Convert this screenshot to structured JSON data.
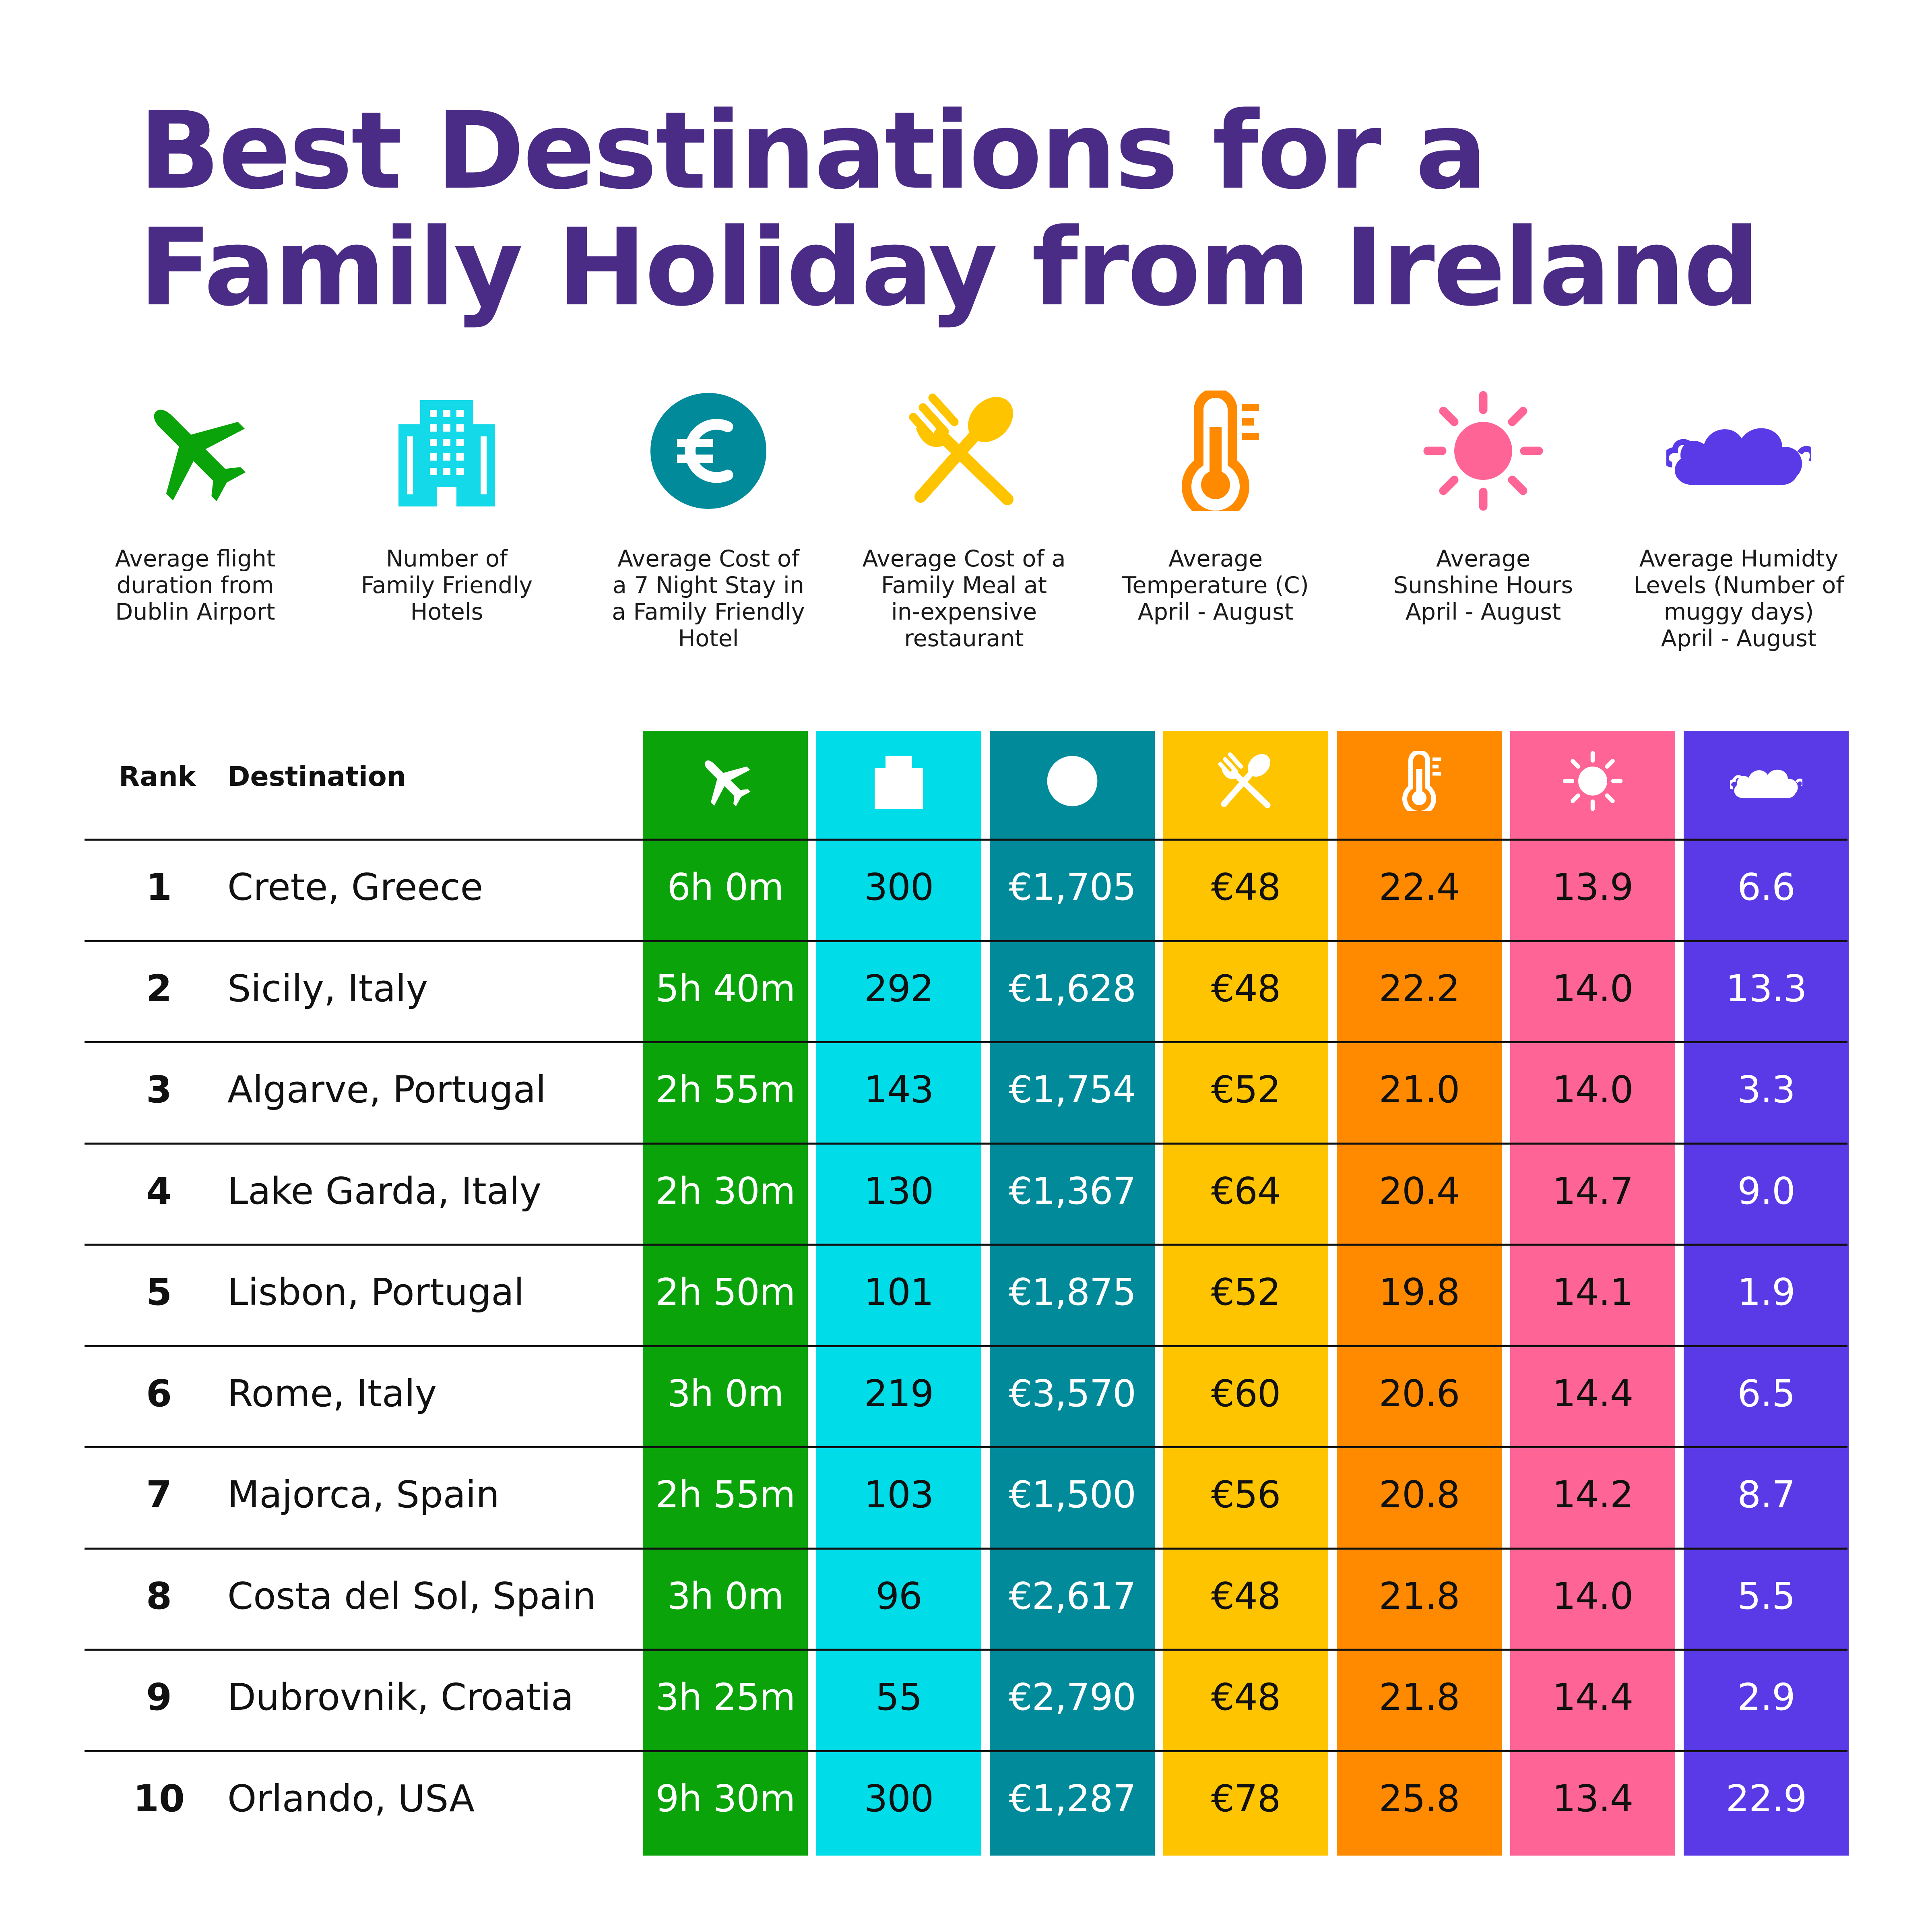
{
  "title": [
    "Best Destinations for a",
    "Family Holiday from Ireland"
  ],
  "legend": [
    {
      "icon": "airplane-icon",
      "color": "#0aa30a",
      "lines": [
        "Average flight",
        "duration from",
        "Dublin Airport"
      ]
    },
    {
      "icon": "hotel-building-icon",
      "color": "#14d9e8",
      "lines": [
        "Number of",
        "Family Friendly",
        "Hotels"
      ]
    },
    {
      "icon": "euro-coin-icon",
      "color": "#008a9a",
      "lines": [
        "Average Cost of",
        "a 7 Night Stay in",
        "a Family Friendly",
        "Hotel"
      ]
    },
    {
      "icon": "fork-spoon-icon",
      "color": "#ffc400",
      "lines": [
        "Average Cost of a",
        "Family Meal at",
        "in-expensive",
        "restaurant"
      ]
    },
    {
      "icon": "thermometer-icon",
      "color": "#ff8a00",
      "lines": [
        "Average",
        "Temperature (C)",
        "April - August"
      ]
    },
    {
      "icon": "sun-icon",
      "color": "#ff6496",
      "lines": [
        "Average",
        "Sunshine Hours",
        "April - August"
      ]
    },
    {
      "icon": "cloud-icon",
      "color": "#5a3ae6",
      "lines": [
        "Average Humidty",
        "Levels (Number of",
        "muggy days)",
        "April - August"
      ]
    }
  ],
  "table_headers": {
    "rank": "Rank",
    "destination": "Destination"
  },
  "colors": {
    "title": "#4a2b86",
    "columns": [
      "#0aa30a",
      "#00dce8",
      "#008a9a",
      "#ffc400",
      "#ff8a00",
      "#ff6496",
      "#5a3ae6"
    ],
    "column_text": [
      "#ffffff",
      "#111111",
      "#ffffff",
      "#111111",
      "#111111",
      "#111111",
      "#ffffff"
    ]
  },
  "chart_data": {
    "type": "table",
    "columns": [
      "Rank",
      "Destination",
      "Average flight duration from Dublin Airport",
      "Number of Family Friendly Hotels",
      "Average Cost of a 7 Night Stay in a Family Friendly Hotel",
      "Average Cost of a Family Meal at in-expensive restaurant",
      "Average Temperature (C) April - August",
      "Average Sunshine Hours April - August",
      "Average Humidty Levels (Number of muggy days) April - August"
    ],
    "rows": [
      {
        "rank": "1",
        "destination": "Crete, Greece",
        "flight": "6h 0m",
        "hotels": "300",
        "stay": "€1,705",
        "meal": "€48",
        "temp": "22.4",
        "sun": "13.9",
        "humid": "6.6"
      },
      {
        "rank": "2",
        "destination": "Sicily, Italy",
        "flight": "5h 40m",
        "hotels": "292",
        "stay": "€1,628",
        "meal": "€48",
        "temp": "22.2",
        "sun": "14.0",
        "humid": "13.3"
      },
      {
        "rank": "3",
        "destination": "Algarve, Portugal",
        "flight": "2h 55m",
        "hotels": "143",
        "stay": "€1,754",
        "meal": "€52",
        "temp": "21.0",
        "sun": "14.0",
        "humid": "3.3"
      },
      {
        "rank": "4",
        "destination": "Lake Garda, Italy",
        "flight": "2h 30m",
        "hotels": "130",
        "stay": "€1,367",
        "meal": "€64",
        "temp": "20.4",
        "sun": "14.7",
        "humid": "9.0"
      },
      {
        "rank": "5",
        "destination": "Lisbon, Portugal",
        "flight": "2h 50m",
        "hotels": "101",
        "stay": "€1,875",
        "meal": "€52",
        "temp": "19.8",
        "sun": "14.1",
        "humid": "1.9"
      },
      {
        "rank": "6",
        "destination": "Rome, Italy",
        "flight": "3h 0m",
        "hotels": "219",
        "stay": "€3,570",
        "meal": "€60",
        "temp": "20.6",
        "sun": "14.4",
        "humid": "6.5"
      },
      {
        "rank": "7",
        "destination": "Majorca, Spain",
        "flight": "2h 55m",
        "hotels": "103",
        "stay": "€1,500",
        "meal": "€56",
        "temp": "20.8",
        "sun": "14.2",
        "humid": "8.7"
      },
      {
        "rank": "8",
        "destination": "Costa del Sol, Spain",
        "flight": "3h 0m",
        "hotels": "96",
        "stay": "€2,617",
        "meal": "€48",
        "temp": "21.8",
        "sun": "14.0",
        "humid": "5.5"
      },
      {
        "rank": "9",
        "destination": "Dubrovnik, Croatia",
        "flight": "3h 25m",
        "hotels": "55",
        "stay": "€2,790",
        "meal": "€48",
        "temp": "21.8",
        "sun": "14.4",
        "humid": "2.9"
      },
      {
        "rank": "10",
        "destination": "Orlando, USA",
        "flight": "9h 30m",
        "hotels": "300",
        "stay": "€1,287",
        "meal": "€78",
        "temp": "25.8",
        "sun": "13.4",
        "humid": "22.9"
      }
    ]
  }
}
